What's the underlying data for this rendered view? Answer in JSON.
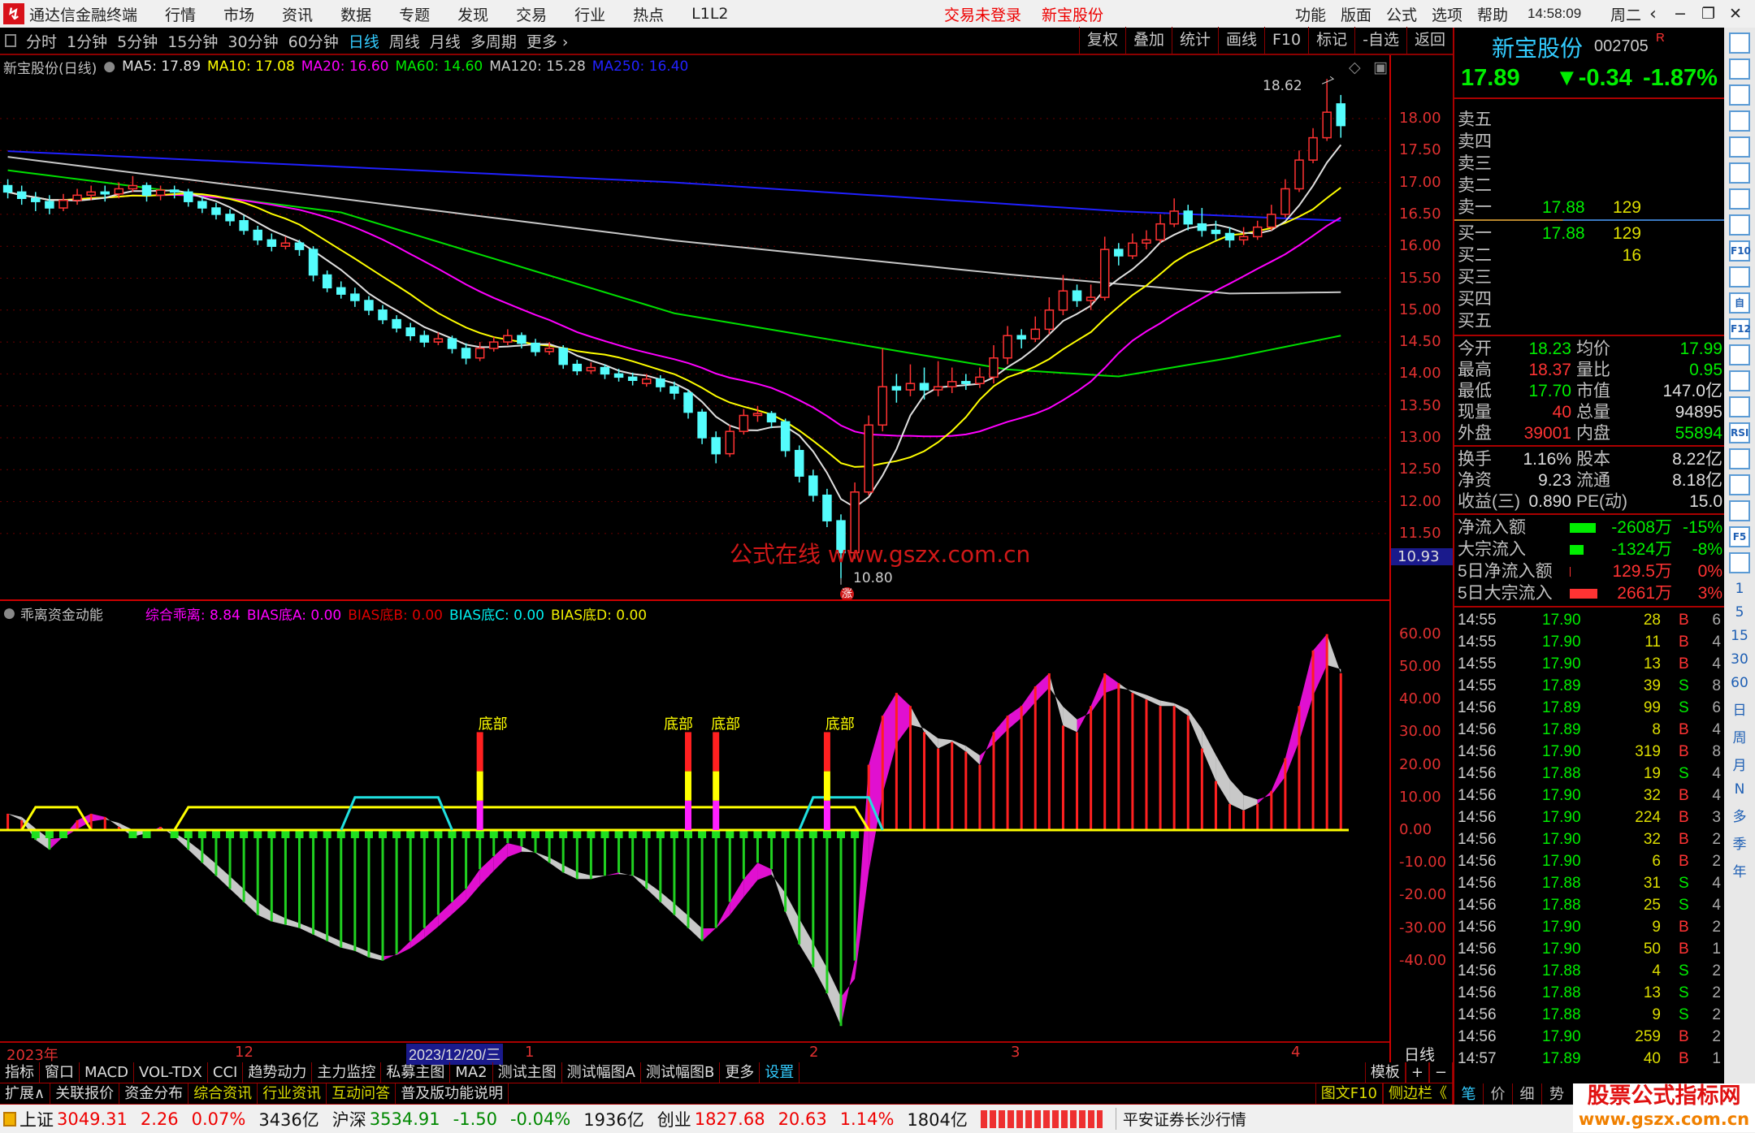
{
  "menubar": {
    "app_title": "通达信金融终端",
    "menus": [
      "行情",
      "市场",
      "资讯",
      "数据",
      "专题",
      "发现",
      "交易",
      "行业",
      "热点",
      "L1L2"
    ],
    "trade_status": "交易未登录",
    "stock_name": "新宝股份",
    "right_menus": [
      "功能",
      "版面",
      "公式",
      "选项",
      "帮助"
    ],
    "clock": "14:58:09",
    "weekday": "周二",
    "controls": [
      "‹",
      "−",
      "❐",
      "✕"
    ]
  },
  "toolbar": {
    "periods": [
      "分时",
      "1分钟",
      "5分钟",
      "15分钟",
      "30分钟",
      "60分钟",
      "日线",
      "周线",
      "月线",
      "多周期",
      "更多 ›"
    ],
    "active_period": "日线",
    "buttons": [
      "复权",
      "叠加",
      "统计",
      "画线",
      "F10",
      "标记",
      "-自选",
      "返回"
    ]
  },
  "main_header": {
    "title": "新宝股份(日线)",
    "ma5": "MA5: 17.89",
    "ma10": "MA10: 17.08",
    "ma20": "MA20: 16.60",
    "ma60": "MA60: 14.60",
    "ma120": "MA120: 15.28",
    "ma250": "MA250: 16.40"
  },
  "colors": {
    "up": "#ff3232",
    "down": "#54fcfc",
    "ma5": "#e0e0e0",
    "ma10": "#ffff00",
    "ma20": "#ff00ff",
    "ma60": "#00e000",
    "ma120": "#c8c8c8",
    "ma250": "#2020ff",
    "axis": "#e03030"
  },
  "chart_data": [
    {
      "type": "candlestick",
      "ylim": [
        10.5,
        18.9
      ],
      "yticks": [
        "18.00",
        "17.50",
        "17.00",
        "16.50",
        "16.00",
        "15.50",
        "15.00",
        "14.50",
        "14.00",
        "13.50",
        "13.00",
        "12.50",
        "12.00",
        "11.50"
      ],
      "annotations": {
        "high": "18.62",
        "low": "10.80",
        "crosshair_price": "10.93",
        "watermark": "公式在线 www.gszx.com.cn",
        "limit_badge": "涨"
      },
      "high_index": 95,
      "low_index": 60,
      "ohlc": [
        [
          16.95,
          17.05,
          16.75,
          16.85
        ],
        [
          16.85,
          16.95,
          16.65,
          16.75
        ],
        [
          16.75,
          16.85,
          16.55,
          16.7
        ],
        [
          16.7,
          16.8,
          16.5,
          16.6
        ],
        [
          16.6,
          16.82,
          16.55,
          16.72
        ],
        [
          16.72,
          16.9,
          16.65,
          16.8
        ],
        [
          16.8,
          16.95,
          16.72,
          16.85
        ],
        [
          16.85,
          16.95,
          16.7,
          16.82
        ],
        [
          16.82,
          17.0,
          16.75,
          16.9
        ],
        [
          16.9,
          17.1,
          16.85,
          16.95
        ],
        [
          16.95,
          17.0,
          16.7,
          16.8
        ],
        [
          16.8,
          16.95,
          16.72,
          16.88
        ],
        [
          16.88,
          16.95,
          16.75,
          16.85
        ],
        [
          16.85,
          16.9,
          16.62,
          16.7
        ],
        [
          16.7,
          16.78,
          16.52,
          16.6
        ],
        [
          16.6,
          16.68,
          16.42,
          16.5
        ],
        [
          16.5,
          16.58,
          16.32,
          16.4
        ],
        [
          16.4,
          16.48,
          16.18,
          16.25
        ],
        [
          16.25,
          16.32,
          16.02,
          16.1
        ],
        [
          16.1,
          16.2,
          15.92,
          16.0
        ],
        [
          16.0,
          16.15,
          15.95,
          16.05
        ],
        [
          16.05,
          16.1,
          15.85,
          15.95
        ],
        [
          15.95,
          16.0,
          15.45,
          15.55
        ],
        [
          15.55,
          15.62,
          15.28,
          15.35
        ],
        [
          15.35,
          15.45,
          15.18,
          15.25
        ],
        [
          15.25,
          15.35,
          15.05,
          15.15
        ],
        [
          15.15,
          15.22,
          14.92,
          15.0
        ],
        [
          15.0,
          15.08,
          14.78,
          14.85
        ],
        [
          14.85,
          14.92,
          14.65,
          14.72
        ],
        [
          14.72,
          14.8,
          14.52,
          14.6
        ],
        [
          14.6,
          14.68,
          14.42,
          14.5
        ],
        [
          14.5,
          14.65,
          14.45,
          14.55
        ],
        [
          14.55,
          14.6,
          14.32,
          14.4
        ],
        [
          14.4,
          14.48,
          14.15,
          14.25
        ],
        [
          14.25,
          14.5,
          14.2,
          14.4
        ],
        [
          14.4,
          14.58,
          14.35,
          14.5
        ],
        [
          14.5,
          14.7,
          14.45,
          14.6
        ],
        [
          14.6,
          14.65,
          14.4,
          14.48
        ],
        [
          14.48,
          14.55,
          14.28,
          14.35
        ],
        [
          14.35,
          14.5,
          14.3,
          14.4
        ],
        [
          14.4,
          14.45,
          14.08,
          14.15
        ],
        [
          14.15,
          14.22,
          13.98,
          14.05
        ],
        [
          14.05,
          14.18,
          14.0,
          14.1
        ],
        [
          14.1,
          14.15,
          13.92,
          14.0
        ],
        [
          14.0,
          14.08,
          13.88,
          13.95
        ],
        [
          13.95,
          14.02,
          13.82,
          13.9
        ],
        [
          13.85,
          14.0,
          13.8,
          13.92
        ],
        [
          13.92,
          13.98,
          13.72,
          13.8
        ],
        [
          13.8,
          13.88,
          13.6,
          13.7
        ],
        [
          13.7,
          13.75,
          13.3,
          13.4
        ],
        [
          13.4,
          13.45,
          12.9,
          13.0
        ],
        [
          13.0,
          13.1,
          12.6,
          12.75
        ],
        [
          12.75,
          13.2,
          12.7,
          13.1
        ],
        [
          13.1,
          13.45,
          13.05,
          13.35
        ],
        [
          13.35,
          13.5,
          13.25,
          13.38
        ],
        [
          13.38,
          13.42,
          13.15,
          13.25
        ],
        [
          13.25,
          13.3,
          12.7,
          12.8
        ],
        [
          12.8,
          12.88,
          12.3,
          12.4
        ],
        [
          12.4,
          12.5,
          12.0,
          12.1
        ],
        [
          12.1,
          12.2,
          11.6,
          11.7
        ],
        [
          11.7,
          11.8,
          10.8,
          11.2
        ],
        [
          11.2,
          12.3,
          11.1,
          12.15
        ],
        [
          12.15,
          13.35,
          12.1,
          13.2
        ],
        [
          13.2,
          14.4,
          13.1,
          13.8
        ],
        [
          13.8,
          14.0,
          13.55,
          13.75
        ],
        [
          13.75,
          14.15,
          13.65,
          13.85
        ],
        [
          13.85,
          14.1,
          13.6,
          13.75
        ],
        [
          13.75,
          14.2,
          13.65,
          13.8
        ],
        [
          13.8,
          14.1,
          13.7,
          13.88
        ],
        [
          13.88,
          14.0,
          13.75,
          13.85
        ],
        [
          13.85,
          14.1,
          13.78,
          13.95
        ],
        [
          13.95,
          14.45,
          13.85,
          14.25
        ],
        [
          14.25,
          14.75,
          14.15,
          14.6
        ],
        [
          14.6,
          14.7,
          14.4,
          14.55
        ],
        [
          14.55,
          14.9,
          14.5,
          14.7
        ],
        [
          14.7,
          15.2,
          14.62,
          15.0
        ],
        [
          15.0,
          15.55,
          14.92,
          15.3
        ],
        [
          15.3,
          15.4,
          15.05,
          15.15
        ],
        [
          15.15,
          15.4,
          15.0,
          15.2
        ],
        [
          15.2,
          16.15,
          15.15,
          15.95
        ],
        [
          15.95,
          16.05,
          15.7,
          15.85
        ],
        [
          15.85,
          16.2,
          15.8,
          16.05
        ],
        [
          16.05,
          16.25,
          15.95,
          16.1
        ],
        [
          16.1,
          16.5,
          16.05,
          16.35
        ],
        [
          16.35,
          16.75,
          16.3,
          16.55
        ],
        [
          16.55,
          16.65,
          16.25,
          16.35
        ],
        [
          16.35,
          16.6,
          16.15,
          16.25
        ],
        [
          16.25,
          16.4,
          16.1,
          16.2
        ],
        [
          16.2,
          16.3,
          15.98,
          16.1
        ],
        [
          16.1,
          16.3,
          16.02,
          16.15
        ],
        [
          16.15,
          16.4,
          16.1,
          16.3
        ],
        [
          16.3,
          16.65,
          16.25,
          16.5
        ],
        [
          16.5,
          17.05,
          16.45,
          16.9
        ],
        [
          16.9,
          17.5,
          16.85,
          17.35
        ],
        [
          17.35,
          17.85,
          17.3,
          17.7
        ],
        [
          17.7,
          18.62,
          17.65,
          18.1
        ],
        [
          18.23,
          18.37,
          17.7,
          17.89
        ]
      ],
      "ma_long": {
        "ma60": [
          [
            0,
            17.19
          ],
          [
            24,
            16.53
          ],
          [
            48,
            14.95
          ],
          [
            72,
            14.07
          ],
          [
            80,
            13.96
          ],
          [
            88,
            14.25
          ],
          [
            96,
            14.6
          ]
        ],
        "ma120": [
          [
            0,
            17.4
          ],
          [
            48,
            16.09
          ],
          [
            72,
            15.56
          ],
          [
            88,
            15.26
          ],
          [
            96,
            15.28
          ]
        ],
        "ma250": [
          [
            0,
            17.49
          ],
          [
            48,
            17.0
          ],
          [
            80,
            16.55
          ],
          [
            96,
            16.4
          ]
        ]
      }
    },
    {
      "type": "bar",
      "title": "乖离资金动能",
      "legend": {
        "main": "综合乖离: 8.84",
        "a": "BIAS底A: 0.00",
        "b": "BIAS底B: 0.00",
        "c": "BIAS底C: 0.00",
        "d": "BIAS底D: 0.00"
      },
      "ylim": [
        -63,
        66
      ],
      "yticks": [
        "60.00",
        "50.00",
        "40.00",
        "30.00",
        "20.00",
        "10.00",
        "0.00",
        "-10.00",
        "-20.00",
        "-30.00",
        "-40.00"
      ],
      "values": [
        5,
        3,
        -3,
        -6,
        -2,
        3,
        5,
        4,
        1,
        -2,
        -1,
        1,
        -2,
        -6,
        -10,
        -14,
        -18,
        -22,
        -26,
        -28,
        -29,
        -30,
        -32,
        -34,
        -36,
        -37,
        -39,
        -40,
        -38,
        -34,
        -30,
        -26,
        -22,
        -18,
        -12,
        -8,
        -4,
        -5,
        -7,
        -10,
        -13,
        -15,
        -15,
        -14,
        -13,
        -14,
        -18,
        -22,
        -26,
        -30,
        -34,
        -30,
        -22,
        -15,
        -10,
        -12,
        -25,
        -35,
        -42,
        -50,
        -60,
        -40,
        20,
        35,
        42,
        38,
        30,
        25,
        27,
        24,
        20,
        30,
        35,
        38,
        44,
        48,
        32,
        30,
        38,
        48,
        45,
        42,
        40,
        38,
        38,
        35,
        25,
        15,
        8,
        6,
        8,
        12,
        22,
        38,
        55,
        60,
        48
      ],
      "bottom_signal": {
        "label": "底部",
        "indices": [
          34,
          49,
          51,
          59
        ],
        "level": 30
      },
      "yellow_line": {
        "level": 7,
        "ranges": [
          [
            2,
            5
          ],
          [
            13,
            61
          ]
        ]
      },
      "cyan_line": {
        "level": 10,
        "ranges": [
          [
            25,
            31
          ],
          [
            58,
            62
          ]
        ]
      }
    }
  ],
  "date_axis": {
    "labels": [
      "2023年",
      "12",
      "1",
      "2",
      "3",
      "4"
    ],
    "cursor_date": "2023/12/20/三",
    "period": "日线"
  },
  "quote": {
    "name": "新宝股份",
    "code": "002705",
    "flag": "R",
    "price": "17.89",
    "change": "▼-0.34",
    "pct": "-1.87%",
    "asks": [
      {
        "label": "卖五",
        "price": "",
        "vol": ""
      },
      {
        "label": "卖四",
        "price": "",
        "vol": ""
      },
      {
        "label": "卖三",
        "price": "",
        "vol": ""
      },
      {
        "label": "卖二",
        "price": "",
        "vol": ""
      },
      {
        "label": "卖一",
        "price": "17.88",
        "vol": "129"
      }
    ],
    "bids": [
      {
        "label": "买一",
        "price": "17.88",
        "vol": "129"
      },
      {
        "label": "买二",
        "price": "",
        "vol": "16"
      },
      {
        "label": "买三",
        "price": "",
        "vol": ""
      },
      {
        "label": "买四",
        "price": "",
        "vol": ""
      },
      {
        "label": "买五",
        "price": "",
        "vol": ""
      }
    ],
    "stats": [
      [
        "今开",
        "18.23",
        "均价",
        "17.99"
      ],
      [
        "最高",
        "18.37",
        "量比",
        "0.95"
      ],
      [
        "最低",
        "17.70",
        "市值",
        "147.0亿"
      ],
      [
        "现量",
        "40",
        "总量",
        "94895"
      ],
      [
        "外盘",
        "39001",
        "内盘",
        "55894"
      ]
    ],
    "stats2": [
      [
        "换手",
        "1.16%",
        "股本",
        "8.22亿"
      ],
      [
        "净资",
        "9.23",
        "流通",
        "8.18亿"
      ],
      [
        "收益(三)",
        "0.890",
        "PE(动)",
        "15.0"
      ]
    ],
    "flows": [
      {
        "label": "净流入额",
        "value": "-2608万",
        "pct": "-15%",
        "bar": 0.85,
        "dir": "out"
      },
      {
        "label": "大宗流入",
        "value": "-1324万",
        "pct": "-8%",
        "bar": 0.45,
        "dir": "out"
      },
      {
        "label": "5日净流入额",
        "value": "129.5万",
        "pct": "0%",
        "bar": 0.03,
        "dir": "in"
      },
      {
        "label": "5日大宗流入",
        "value": "2661万",
        "pct": "3%",
        "bar": 0.9,
        "dir": "in"
      }
    ],
    "ticks": [
      [
        "14:55",
        "17.90",
        "28",
        "B",
        "6"
      ],
      [
        "14:55",
        "17.90",
        "11",
        "B",
        "4"
      ],
      [
        "14:55",
        "17.90",
        "13",
        "B",
        "4"
      ],
      [
        "14:55",
        "17.89",
        "39",
        "S",
        "8"
      ],
      [
        "14:56",
        "17.89",
        "99",
        "S",
        "6"
      ],
      [
        "14:56",
        "17.89",
        "8",
        "B",
        "4"
      ],
      [
        "14:56",
        "17.90",
        "319",
        "B",
        "8"
      ],
      [
        "14:56",
        "17.88",
        "19",
        "S",
        "4"
      ],
      [
        "14:56",
        "17.90",
        "32",
        "B",
        "4"
      ],
      [
        "14:56",
        "17.90",
        "224",
        "B",
        "3"
      ],
      [
        "14:56",
        "17.90",
        "32",
        "B",
        "2"
      ],
      [
        "14:56",
        "17.90",
        "6",
        "B",
        "2"
      ],
      [
        "14:56",
        "17.88",
        "31",
        "S",
        "4"
      ],
      [
        "14:56",
        "17.88",
        "25",
        "S",
        "4"
      ],
      [
        "14:56",
        "17.90",
        "9",
        "B",
        "2"
      ],
      [
        "14:56",
        "17.90",
        "50",
        "B",
        "1"
      ],
      [
        "14:56",
        "17.88",
        "4",
        "S",
        "2"
      ],
      [
        "14:56",
        "17.88",
        "13",
        "S",
        "2"
      ],
      [
        "14:56",
        "17.88",
        "9",
        "S",
        "2"
      ],
      [
        "14:56",
        "17.90",
        "259",
        "B",
        "2"
      ],
      [
        "14:57",
        "17.89",
        "40",
        "B",
        "1"
      ]
    ],
    "bottom_tabs": [
      "笔",
      "价",
      "细",
      "势"
    ]
  },
  "icon_strip": {
    "icons": [
      "left-arrow",
      "up-arrow",
      "down-arrow",
      "report",
      "table",
      "line-chart",
      "candle-chart",
      "windows",
      "F10",
      "tree",
      "自",
      "F12",
      "formula",
      "circle",
      "wave",
      "RSI",
      "money",
      "move",
      "pencil",
      "F5",
      "refresh"
    ],
    "periods": [
      "1",
      "5",
      "15",
      "30",
      "60",
      "日",
      "周",
      "月",
      "N",
      "多",
      "季",
      "年"
    ]
  },
  "tabs1": {
    "items": [
      "指标",
      "窗口",
      "MACD",
      "VOL-TDX",
      "CCI",
      "趋势动力",
      "主力监控",
      "私募主图",
      "MA2",
      "测试主图",
      "测试幅图A",
      "测试幅图B",
      "更多",
      "设置"
    ],
    "right": [
      "模板",
      "+",
      "−"
    ]
  },
  "tabs2": {
    "items": [
      "扩展∧",
      "关联报价",
      "资金分布",
      "综合资讯",
      "行业资讯",
      "互动问答",
      "普及版功能说明"
    ],
    "right": [
      "图文F10",
      "侧边栏《"
    ]
  },
  "status": {
    "sh_label": "上证",
    "sh": "3049.31",
    "sh_chg": "2.26",
    "sh_pct": "0.07%",
    "sh_amt": "3436亿",
    "hs_label": "沪深",
    "hs": "3534.91",
    "hs_chg": "-1.50",
    "hs_pct": "-0.04%",
    "hs_amt": "1936亿",
    "cy_label": "创业",
    "cy": "1827.68",
    "cy_chg": "20.63",
    "cy_pct": "1.14%",
    "cy_amt": "1804亿",
    "broker": "平安证券长沙行情",
    "logo_cn": "股票公式指标网",
    "logo_url": "www.gszx.com.cn"
  }
}
